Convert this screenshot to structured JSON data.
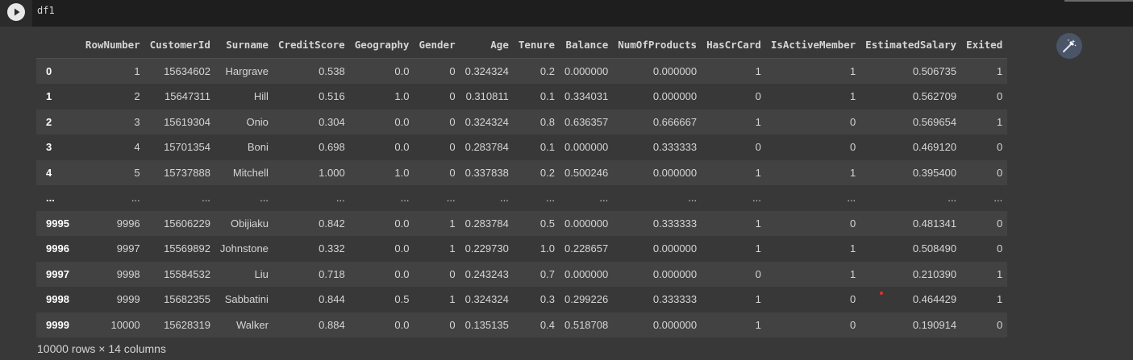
{
  "cell": {
    "code": "df1",
    "run_icon": "play-icon"
  },
  "columns": [
    "",
    "RowNumber",
    "CustomerId",
    "Surname",
    "CreditScore",
    "Geography",
    "Gender",
    "Age",
    "Tenure",
    "Balance",
    "NumOfProducts",
    "HasCrCard",
    "IsActiveMember",
    "EstimatedSalary",
    "Exited"
  ],
  "rows": [
    [
      "0",
      "1",
      "15634602",
      "Hargrave",
      "0.538",
      "0.0",
      "0",
      "0.324324",
      "0.2",
      "0.000000",
      "0.000000",
      "1",
      "1",
      "0.506735",
      "1"
    ],
    [
      "1",
      "2",
      "15647311",
      "Hill",
      "0.516",
      "1.0",
      "0",
      "0.310811",
      "0.1",
      "0.334031",
      "0.000000",
      "0",
      "1",
      "0.562709",
      "0"
    ],
    [
      "2",
      "3",
      "15619304",
      "Onio",
      "0.304",
      "0.0",
      "0",
      "0.324324",
      "0.8",
      "0.636357",
      "0.666667",
      "1",
      "0",
      "0.569654",
      "1"
    ],
    [
      "3",
      "4",
      "15701354",
      "Boni",
      "0.698",
      "0.0",
      "0",
      "0.283784",
      "0.1",
      "0.000000",
      "0.333333",
      "0",
      "0",
      "0.469120",
      "0"
    ],
    [
      "4",
      "5",
      "15737888",
      "Mitchell",
      "1.000",
      "1.0",
      "0",
      "0.337838",
      "0.2",
      "0.500246",
      "0.000000",
      "1",
      "1",
      "0.395400",
      "0"
    ],
    [
      "...",
      "...",
      "...",
      "...",
      "...",
      "...",
      "...",
      "...",
      "...",
      "...",
      "...",
      "...",
      "...",
      "...",
      "..."
    ],
    [
      "9995",
      "9996",
      "15606229",
      "Obijiaku",
      "0.842",
      "0.0",
      "1",
      "0.283784",
      "0.5",
      "0.000000",
      "0.333333",
      "1",
      "0",
      "0.481341",
      "0"
    ],
    [
      "9996",
      "9997",
      "15569892",
      "Johnstone",
      "0.332",
      "0.0",
      "1",
      "0.229730",
      "1.0",
      "0.228657",
      "0.000000",
      "1",
      "1",
      "0.508490",
      "0"
    ],
    [
      "9997",
      "9998",
      "15584532",
      "Liu",
      "0.718",
      "0.0",
      "0",
      "0.243243",
      "0.7",
      "0.000000",
      "0.000000",
      "0",
      "1",
      "0.210390",
      "1"
    ],
    [
      "9998",
      "9999",
      "15682355",
      "Sabbatini",
      "0.844",
      "0.5",
      "1",
      "0.324324",
      "0.3",
      "0.299226",
      "0.333333",
      "1",
      "0",
      "0.464429",
      "1"
    ],
    [
      "9999",
      "10000",
      "15628319",
      "Walker",
      "0.884",
      "0.0",
      "0",
      "0.135135",
      "0.4",
      "0.518708",
      "0.000000",
      "1",
      "0",
      "0.190914",
      "0"
    ]
  ],
  "footer": "10000 rows × 14 columns",
  "magic_icon": "magic-wand-icon",
  "colors": {
    "background": "#383838",
    "row_alt": "#424242",
    "code_bg": "#1e1e1e"
  }
}
